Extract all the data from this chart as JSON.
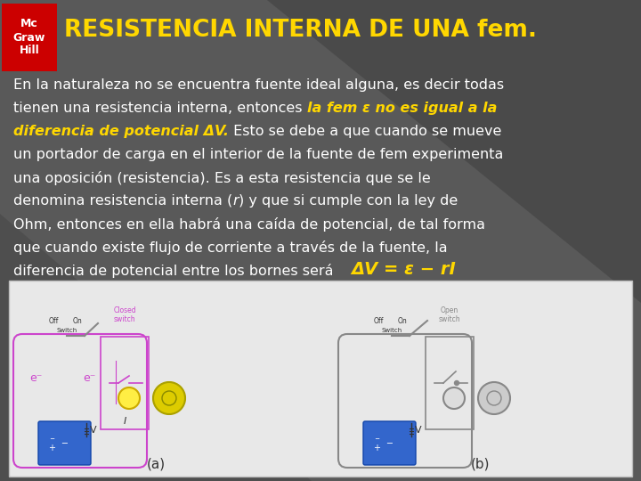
{
  "bg_color": "#5a5a5a",
  "bg_gradient_left": "#707070",
  "bg_gradient_right": "#3a3a3a",
  "title": "RESISTENCIA INTERNA DE UNA fem.",
  "title_color": "#FFD700",
  "title_fontsize": 19,
  "logo_red_color": "#CC0000",
  "logo_text": "Mc\nGraw\nHill",
  "formula": "ΔV = ε − rI",
  "formula_color": "#FFD700",
  "text_color": "#FFFFFF",
  "text_fontsize": 12.5,
  "panel_bg": "#f0f0f0",
  "panel_label_a": "(a)",
  "panel_label_b": "(b)",
  "line1": "En la naturaleza no se encuentra fuente ideal alguna, es decir todas",
  "line2a": "tienen una resistencia interna, entonces ",
  "line2b": "la fem ε no es igual a la",
  "line3a": "diferencia de potencial ΔV.",
  "line3b": " Esto se debe a que cuando se mueve",
  "line4": "un portador de carga en el interior de la fuente de fem experimenta",
  "line5": "una oposición (resistencia). Es a esta resistencia que se le",
  "line6a": "denomina resistencia interna (",
  "line6b": "r",
  "line6c": ") y que si cumple con la ley de",
  "line7": "Ohm, entonces en ella habrá una caída de potencial, de tal forma",
  "line8": "que cuando existe flujo de corriente a través de la fuente, la",
  "line9": "diferencia de potencial entre los bornes será"
}
